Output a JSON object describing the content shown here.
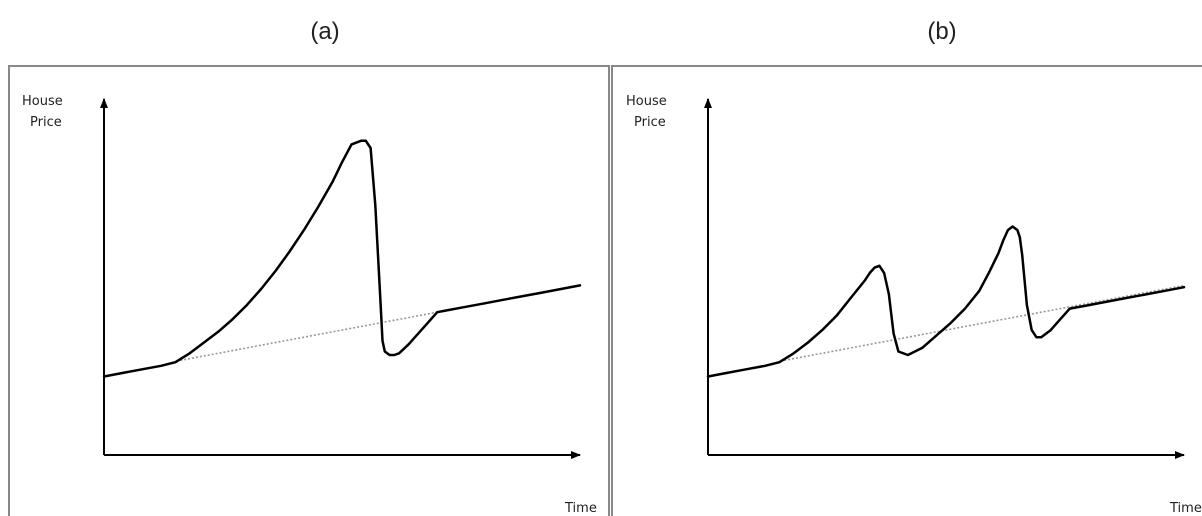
{
  "colors": {
    "frame": "#888888",
    "axis": "#000000",
    "curve": "#000000",
    "trend": "#999999"
  },
  "chart_data": [
    {
      "type": "line",
      "title": "(a)",
      "ylabel_lines": [
        "House",
        "Price"
      ],
      "xlabel": "Time",
      "xlim": [
        0,
        100
      ],
      "ylim": [
        0,
        100
      ],
      "grid": false,
      "series": [
        {
          "x": [
            0,
            4,
            8,
            12,
            15,
            18,
            21,
            24,
            27,
            30,
            33,
            36,
            39,
            42,
            45,
            48,
            50,
            52,
            54,
            55,
            56,
            57,
            58,
            58.5,
            59,
            60,
            61,
            62,
            64,
            66,
            68,
            70,
            72,
            76,
            80,
            84,
            88,
            92,
            96,
            100
          ],
          "y": [
            22,
            23,
            24,
            25,
            26,
            28.5,
            31.5,
            34.5,
            38,
            42,
            46.5,
            51.5,
            57,
            63,
            69.5,
            76.5,
            82,
            87,
            88,
            88,
            86,
            70,
            45,
            32,
            29,
            28,
            28,
            28.5,
            31,
            34,
            37,
            40,
            40.5,
            41.5,
            42.5,
            43.5,
            44.5,
            45.5,
            46.5,
            47.5
          ]
        },
        {
          "x": [
            16,
            100
          ],
          "y": [
            26.5,
            47.5
          ]
        }
      ]
    },
    {
      "type": "line",
      "title": "(b)",
      "ylabel_lines": [
        "House",
        "Price"
      ],
      "xlabel": "Time",
      "xlim": [
        0,
        100
      ],
      "ylim": [
        0,
        100
      ],
      "grid": false,
      "series": [
        {
          "x": [
            0,
            4,
            8,
            12,
            15,
            18,
            21,
            24,
            27,
            30,
            33,
            34,
            35,
            36,
            37,
            38,
            39,
            40,
            42,
            45,
            48,
            51,
            54,
            57,
            59,
            61,
            62,
            63,
            64,
            65,
            65.5,
            66,
            67,
            68,
            69,
            70,
            72,
            74,
            76,
            80,
            84,
            88,
            92,
            96,
            100
          ],
          "y": [
            22,
            23,
            24,
            25,
            26,
            28.5,
            31.5,
            35,
            39,
            44,
            49,
            51,
            52.5,
            53,
            51,
            45,
            34,
            29,
            28,
            30,
            33.5,
            37,
            41,
            46,
            51,
            56.5,
            60,
            63,
            64,
            63,
            61,
            56,
            42,
            35,
            33,
            33,
            35,
            38,
            41,
            42,
            43,
            44,
            45,
            46,
            47
          ]
        },
        {
          "x": [
            16,
            100
          ],
          "y": [
            26.5,
            47.5
          ]
        }
      ]
    }
  ]
}
